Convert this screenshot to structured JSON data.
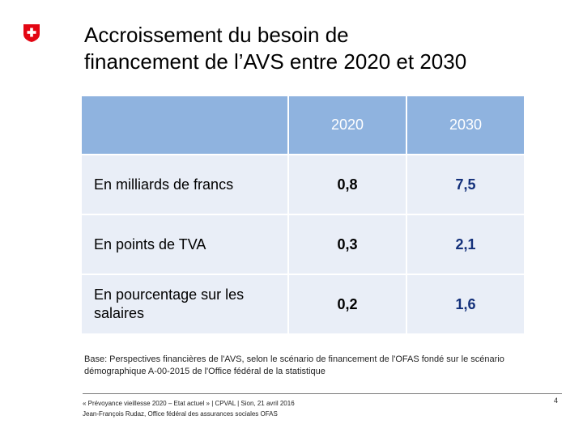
{
  "header": {
    "title_line1": "Accroissement du besoin de",
    "title_line2": "financement de l’AVS entre 2020 et 2030",
    "logo_color": "#e30613"
  },
  "table": {
    "columns": [
      "",
      "2020",
      "2030"
    ],
    "rows": [
      {
        "label": "En milliards de francs",
        "v2020": "0,8",
        "v2030": "7,5"
      },
      {
        "label": "En points de TVA",
        "v2020": "0,3",
        "v2030": "2,1"
      },
      {
        "label": "En pourcentage sur les salaires",
        "v2020": "0,2",
        "v2030": "1,6"
      }
    ],
    "header_color": "#8fb3df",
    "row_color": "#e9eef7",
    "accent_value_color": "#13307a"
  },
  "note": "Base: Perspectives financières de l'AVS, selon le scénario de financement de l'OFAS fondé sur le scénario démographique A-00-2015 de l'Office fédéral de la statistique",
  "footer": {
    "line1": "« Prévoyance vieillesse 2020 – Etat actuel » | CPVAL | Sion, 21 avril 2016",
    "line2": "Jean-François Rudaz, Office fédéral des assurances sociales OFAS",
    "page_number": "4"
  }
}
